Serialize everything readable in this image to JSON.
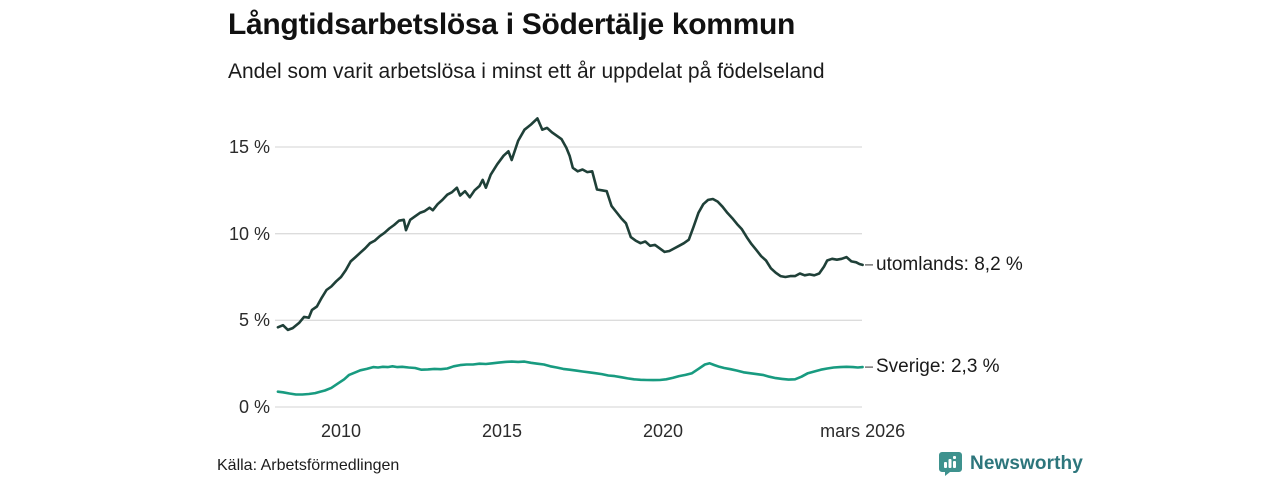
{
  "chart_data": {
    "type": "line",
    "title": "Långtidsarbetslösa i Södertälje kommun",
    "subtitle": "Andel som varit arbetslösa i minst ett år uppdelat på födelseland",
    "source": "Källa: Arbetsförmedlingen",
    "branding": "Newsworthy",
    "xlabel": "",
    "ylabel": "",
    "xlim": [
      2008.0,
      2026.25
    ],
    "ylim": [
      0,
      17.5
    ],
    "grid": "horizontal",
    "legend_position": "right-of-line-ends",
    "colors": {
      "grid": "#dcdcdc",
      "tick_text": "#2b2b2b",
      "label_dash": "#808080",
      "brand_teal": "#3e928e",
      "brand_text": "#2d767c"
    },
    "x_ticks": [
      {
        "label": "2010",
        "year": 2010
      },
      {
        "label": "2015",
        "year": 2015
      },
      {
        "label": "2020",
        "year": 2020
      },
      {
        "label": "mars 2026",
        "year": 2026.2
      }
    ],
    "y_ticks": [
      {
        "label": "0 %",
        "value": 0
      },
      {
        "label": "5 %",
        "value": 5
      },
      {
        "label": "10 %",
        "value": 10
      },
      {
        "label": "15 %",
        "value": 15
      }
    ],
    "series": [
      {
        "name": "utomlands",
        "label": "utomlands: 8,2 %",
        "last_value": 8.2,
        "color": "#1f4038",
        "points": [
          [
            2008.04,
            4.6
          ],
          [
            2008.2,
            4.72
          ],
          [
            2008.35,
            4.45
          ],
          [
            2008.5,
            4.55
          ],
          [
            2008.7,
            4.85
          ],
          [
            2008.85,
            5.2
          ],
          [
            2009.0,
            5.15
          ],
          [
            2009.1,
            5.6
          ],
          [
            2009.25,
            5.8
          ],
          [
            2009.4,
            6.3
          ],
          [
            2009.55,
            6.75
          ],
          [
            2009.7,
            6.95
          ],
          [
            2009.85,
            7.25
          ],
          [
            2010.0,
            7.5
          ],
          [
            2010.15,
            7.9
          ],
          [
            2010.3,
            8.4
          ],
          [
            2010.45,
            8.65
          ],
          [
            2010.6,
            8.9
          ],
          [
            2010.75,
            9.15
          ],
          [
            2010.9,
            9.45
          ],
          [
            2011.05,
            9.6
          ],
          [
            2011.2,
            9.85
          ],
          [
            2011.35,
            10.05
          ],
          [
            2011.5,
            10.3
          ],
          [
            2011.65,
            10.5
          ],
          [
            2011.8,
            10.75
          ],
          [
            2011.95,
            10.8
          ],
          [
            2012.02,
            10.2
          ],
          [
            2012.15,
            10.8
          ],
          [
            2012.3,
            11.0
          ],
          [
            2012.45,
            11.2
          ],
          [
            2012.6,
            11.3
          ],
          [
            2012.75,
            11.5
          ],
          [
            2012.85,
            11.35
          ],
          [
            2013.0,
            11.7
          ],
          [
            2013.15,
            11.95
          ],
          [
            2013.3,
            12.25
          ],
          [
            2013.45,
            12.4
          ],
          [
            2013.6,
            12.65
          ],
          [
            2013.7,
            12.2
          ],
          [
            2013.85,
            12.45
          ],
          [
            2014.0,
            12.1
          ],
          [
            2014.15,
            12.5
          ],
          [
            2014.3,
            12.75
          ],
          [
            2014.4,
            13.1
          ],
          [
            2014.5,
            12.65
          ],
          [
            2014.65,
            13.4
          ],
          [
            2014.85,
            14.0
          ],
          [
            2015.05,
            14.5
          ],
          [
            2015.2,
            14.75
          ],
          [
            2015.3,
            14.25
          ],
          [
            2015.5,
            15.35
          ],
          [
            2015.7,
            16.0
          ],
          [
            2015.9,
            16.3
          ],
          [
            2016.1,
            16.65
          ],
          [
            2016.25,
            16.0
          ],
          [
            2016.4,
            16.1
          ],
          [
            2016.55,
            15.85
          ],
          [
            2016.7,
            15.65
          ],
          [
            2016.85,
            15.45
          ],
          [
            2017.0,
            14.95
          ],
          [
            2017.1,
            14.5
          ],
          [
            2017.2,
            13.8
          ],
          [
            2017.35,
            13.6
          ],
          [
            2017.5,
            13.7
          ],
          [
            2017.65,
            13.55
          ],
          [
            2017.8,
            13.6
          ],
          [
            2017.95,
            12.55
          ],
          [
            2018.1,
            12.5
          ],
          [
            2018.25,
            12.45
          ],
          [
            2018.4,
            11.6
          ],
          [
            2018.55,
            11.25
          ],
          [
            2018.7,
            10.9
          ],
          [
            2018.85,
            10.6
          ],
          [
            2019.0,
            9.8
          ],
          [
            2019.15,
            9.6
          ],
          [
            2019.3,
            9.45
          ],
          [
            2019.45,
            9.55
          ],
          [
            2019.6,
            9.3
          ],
          [
            2019.75,
            9.35
          ],
          [
            2019.9,
            9.15
          ],
          [
            2020.05,
            8.95
          ],
          [
            2020.2,
            9.0
          ],
          [
            2020.35,
            9.15
          ],
          [
            2020.5,
            9.3
          ],
          [
            2020.65,
            9.45
          ],
          [
            2020.8,
            9.65
          ],
          [
            2020.95,
            10.4
          ],
          [
            2021.1,
            11.2
          ],
          [
            2021.25,
            11.7
          ],
          [
            2021.4,
            11.95
          ],
          [
            2021.55,
            12.0
          ],
          [
            2021.7,
            11.85
          ],
          [
            2021.85,
            11.55
          ],
          [
            2022.0,
            11.2
          ],
          [
            2022.15,
            10.9
          ],
          [
            2022.3,
            10.55
          ],
          [
            2022.45,
            10.25
          ],
          [
            2022.6,
            9.8
          ],
          [
            2022.75,
            9.4
          ],
          [
            2022.9,
            9.05
          ],
          [
            2023.05,
            8.7
          ],
          [
            2023.2,
            8.45
          ],
          [
            2023.35,
            8.0
          ],
          [
            2023.5,
            7.75
          ],
          [
            2023.65,
            7.55
          ],
          [
            2023.8,
            7.5
          ],
          [
            2023.95,
            7.55
          ],
          [
            2024.1,
            7.55
          ],
          [
            2024.25,
            7.7
          ],
          [
            2024.4,
            7.6
          ],
          [
            2024.55,
            7.65
          ],
          [
            2024.7,
            7.6
          ],
          [
            2024.85,
            7.7
          ],
          [
            2025.0,
            8.1
          ],
          [
            2025.1,
            8.45
          ],
          [
            2025.25,
            8.55
          ],
          [
            2025.4,
            8.5
          ],
          [
            2025.55,
            8.55
          ],
          [
            2025.7,
            8.65
          ],
          [
            2025.85,
            8.4
          ],
          [
            2026.0,
            8.35
          ],
          [
            2026.1,
            8.25
          ],
          [
            2026.2,
            8.2
          ]
        ]
      },
      {
        "name": "Sverige",
        "label": "Sverige: 2,3 %",
        "last_value": 2.3,
        "color": "#189b80",
        "points": [
          [
            2008.04,
            0.88
          ],
          [
            2008.2,
            0.85
          ],
          [
            2008.4,
            0.78
          ],
          [
            2008.6,
            0.72
          ],
          [
            2008.8,
            0.72
          ],
          [
            2009.0,
            0.75
          ],
          [
            2009.2,
            0.8
          ],
          [
            2009.35,
            0.88
          ],
          [
            2009.5,
            0.95
          ],
          [
            2009.7,
            1.1
          ],
          [
            2009.9,
            1.35
          ],
          [
            2010.1,
            1.6
          ],
          [
            2010.25,
            1.85
          ],
          [
            2010.45,
            2.0
          ],
          [
            2010.6,
            2.12
          ],
          [
            2010.8,
            2.2
          ],
          [
            2011.0,
            2.3
          ],
          [
            2011.15,
            2.28
          ],
          [
            2011.3,
            2.32
          ],
          [
            2011.45,
            2.3
          ],
          [
            2011.6,
            2.35
          ],
          [
            2011.75,
            2.3
          ],
          [
            2011.9,
            2.32
          ],
          [
            2012.1,
            2.28
          ],
          [
            2012.3,
            2.25
          ],
          [
            2012.5,
            2.15
          ],
          [
            2012.7,
            2.17
          ],
          [
            2012.9,
            2.2
          ],
          [
            2013.1,
            2.18
          ],
          [
            2013.3,
            2.22
          ],
          [
            2013.5,
            2.35
          ],
          [
            2013.7,
            2.42
          ],
          [
            2013.9,
            2.45
          ],
          [
            2014.1,
            2.45
          ],
          [
            2014.3,
            2.5
          ],
          [
            2014.5,
            2.48
          ],
          [
            2014.7,
            2.52
          ],
          [
            2014.9,
            2.56
          ],
          [
            2015.1,
            2.6
          ],
          [
            2015.3,
            2.62
          ],
          [
            2015.5,
            2.6
          ],
          [
            2015.7,
            2.62
          ],
          [
            2015.9,
            2.55
          ],
          [
            2016.1,
            2.5
          ],
          [
            2016.3,
            2.45
          ],
          [
            2016.5,
            2.35
          ],
          [
            2016.7,
            2.28
          ],
          [
            2016.9,
            2.2
          ],
          [
            2017.1,
            2.15
          ],
          [
            2017.3,
            2.1
          ],
          [
            2017.5,
            2.05
          ],
          [
            2017.7,
            2.0
          ],
          [
            2017.9,
            1.95
          ],
          [
            2018.1,
            1.9
          ],
          [
            2018.3,
            1.82
          ],
          [
            2018.5,
            1.78
          ],
          [
            2018.7,
            1.72
          ],
          [
            2018.9,
            1.65
          ],
          [
            2019.1,
            1.6
          ],
          [
            2019.3,
            1.57
          ],
          [
            2019.5,
            1.56
          ],
          [
            2019.7,
            1.55
          ],
          [
            2019.9,
            1.56
          ],
          [
            2020.1,
            1.6
          ],
          [
            2020.3,
            1.68
          ],
          [
            2020.5,
            1.78
          ],
          [
            2020.7,
            1.85
          ],
          [
            2020.9,
            1.95
          ],
          [
            2021.1,
            2.2
          ],
          [
            2021.3,
            2.45
          ],
          [
            2021.45,
            2.52
          ],
          [
            2021.6,
            2.42
          ],
          [
            2021.75,
            2.32
          ],
          [
            2021.9,
            2.25
          ],
          [
            2022.1,
            2.18
          ],
          [
            2022.3,
            2.1
          ],
          [
            2022.5,
            2.0
          ],
          [
            2022.7,
            1.95
          ],
          [
            2022.9,
            1.9
          ],
          [
            2023.1,
            1.85
          ],
          [
            2023.3,
            1.75
          ],
          [
            2023.5,
            1.67
          ],
          [
            2023.7,
            1.62
          ],
          [
            2023.9,
            1.58
          ],
          [
            2024.1,
            1.6
          ],
          [
            2024.3,
            1.75
          ],
          [
            2024.5,
            1.95
          ],
          [
            2024.7,
            2.05
          ],
          [
            2024.9,
            2.15
          ],
          [
            2025.1,
            2.22
          ],
          [
            2025.3,
            2.28
          ],
          [
            2025.5,
            2.3
          ],
          [
            2025.7,
            2.32
          ],
          [
            2025.9,
            2.3
          ],
          [
            2026.05,
            2.28
          ],
          [
            2026.2,
            2.3
          ]
        ]
      }
    ]
  }
}
